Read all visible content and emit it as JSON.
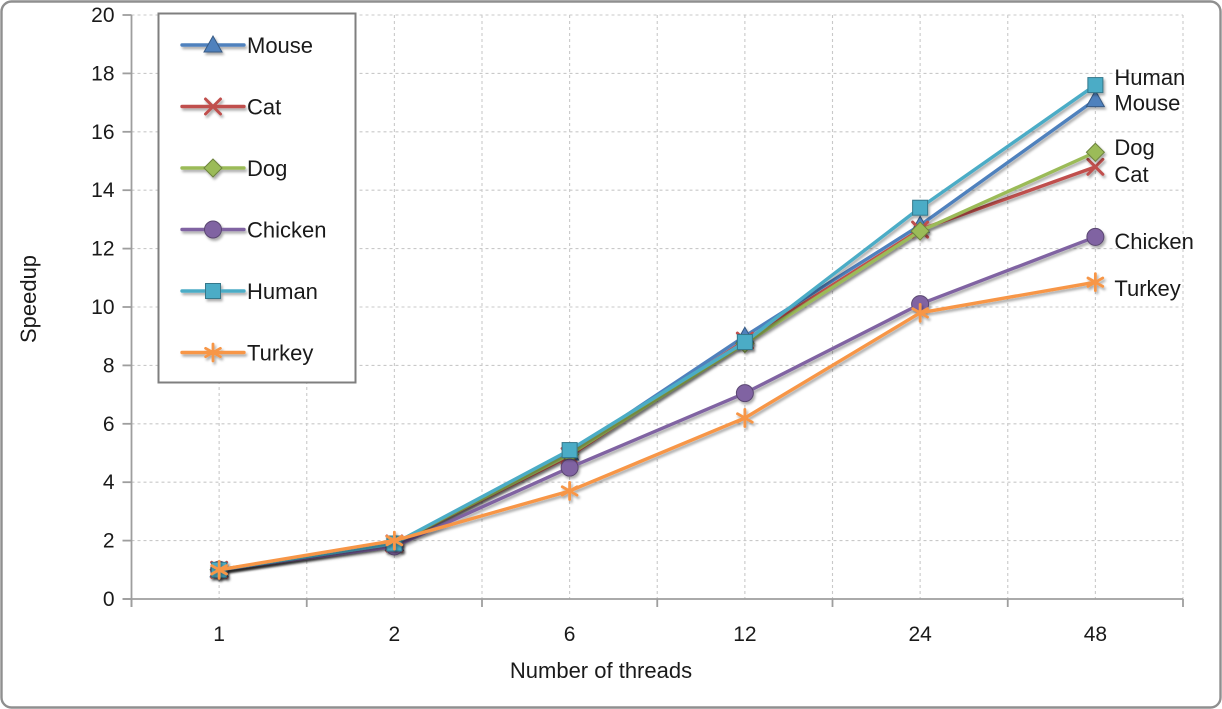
{
  "chart_data": {
    "type": "line",
    "title": "",
    "xlabel": "Number of threads",
    "ylabel": "Speedup",
    "x_categories": [
      "1",
      "2",
      "6",
      "12",
      "24",
      "48"
    ],
    "ylim": [
      0,
      20
    ],
    "ytick_step": 2,
    "grid": true,
    "legend_position": "top-left",
    "series_end_labels": true,
    "series": [
      {
        "name": "Mouse",
        "color": "#4F81BD",
        "marker": "triangle",
        "values": [
          1.0,
          1.9,
          5.0,
          9.0,
          12.8,
          17.1
        ]
      },
      {
        "name": "Cat",
        "color": "#C0504D",
        "marker": "x",
        "values": [
          1.0,
          1.9,
          4.9,
          8.85,
          12.65,
          14.8
        ]
      },
      {
        "name": "Dog",
        "color": "#9BBB59",
        "marker": "diamond",
        "values": [
          1.0,
          1.9,
          4.95,
          8.75,
          12.6,
          15.3
        ]
      },
      {
        "name": "Chicken",
        "color": "#8064A2",
        "marker": "circle",
        "values": [
          1.0,
          1.8,
          4.5,
          7.05,
          10.1,
          12.4
        ]
      },
      {
        "name": "Human",
        "color": "#4BACC6",
        "marker": "square",
        "values": [
          1.0,
          1.9,
          5.1,
          8.8,
          13.4,
          17.6
        ]
      },
      {
        "name": "Turkey",
        "color": "#F79646",
        "marker": "asterisk",
        "values": [
          1.0,
          2.0,
          3.7,
          6.2,
          9.8,
          10.85
        ]
      }
    ],
    "legend_labels": [
      "Mouse",
      "Cat",
      "Dog",
      "Chicken",
      "Human",
      "Turkey"
    ],
    "y_tick_labels": [
      "0",
      "2",
      "4",
      "6",
      "8",
      "10",
      "12",
      "14",
      "16",
      "18",
      "20"
    ]
  }
}
